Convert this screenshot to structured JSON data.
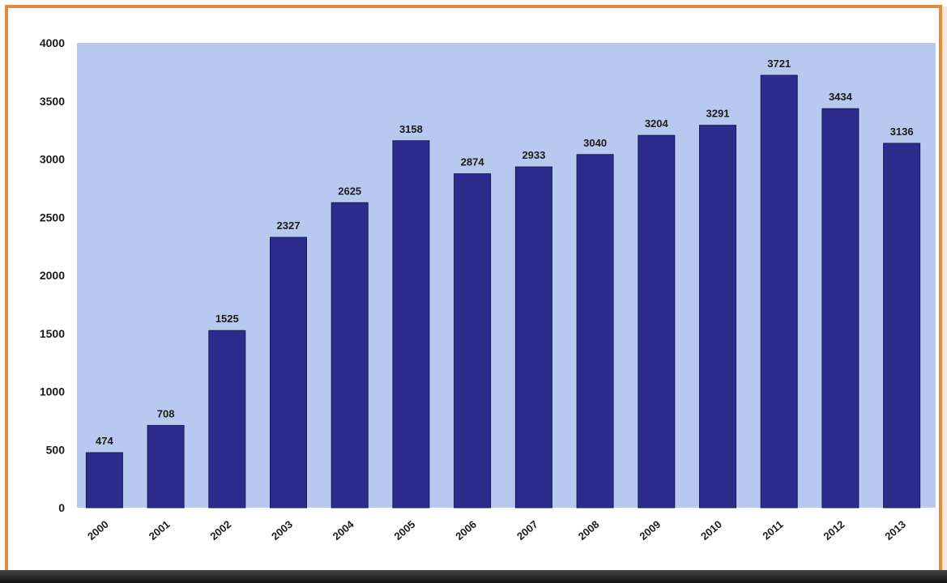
{
  "chart_data": {
    "type": "bar",
    "categories": [
      "2000",
      "2001",
      "2002",
      "2003",
      "2004",
      "2005",
      "2006",
      "2007",
      "2008",
      "2009",
      "2010",
      "2011",
      "2012",
      "2013"
    ],
    "values": [
      474,
      708,
      1525,
      2327,
      2625,
      3158,
      2874,
      2933,
      3040,
      3204,
      3291,
      3721,
      3434,
      3136
    ],
    "data_labels": [
      "474",
      "708",
      "1525",
      "2327",
      "2625",
      "3158",
      "2874",
      "2933",
      "3040",
      "3204",
      "3291",
      "3721",
      "3434",
      "3136"
    ],
    "y_ticks": [
      "0",
      "500",
      "1000",
      "1500",
      "2000",
      "2500",
      "3000",
      "3500",
      "4000"
    ],
    "ylim": [
      0,
      4000
    ],
    "grid": false,
    "legend": "none",
    "colors": {
      "bar": "#2c2c8c",
      "bar_outline": "#1a1a5a",
      "plot_bg": "#b8c8ee",
      "frame": "#e48b3b"
    }
  }
}
